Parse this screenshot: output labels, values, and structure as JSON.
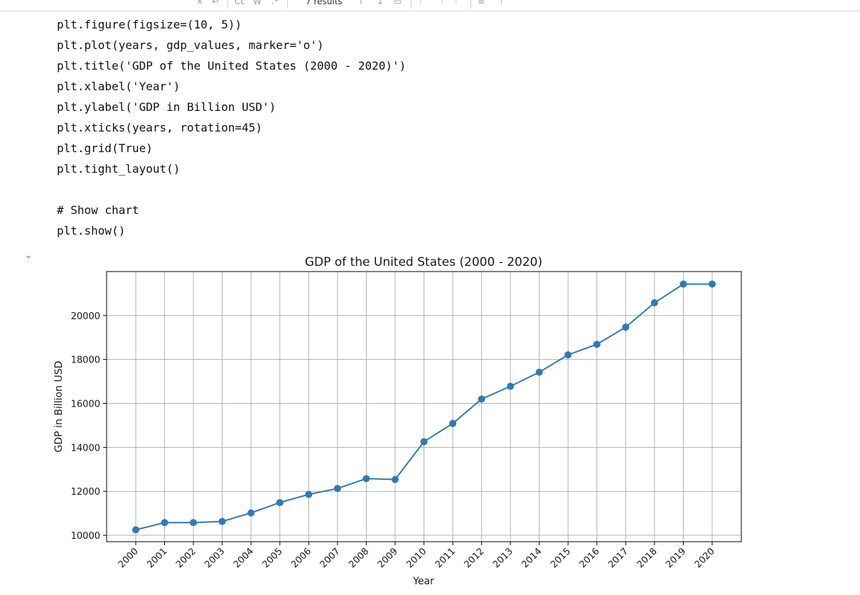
{
  "findbar": {
    "results_text": "7 results",
    "case_label": "Cc",
    "word_label": "W",
    "regex_label": ".*"
  },
  "code_lines": [
    "plt.figure(figsize=(10, 5))",
    "plt.plot(years, gdp_values, marker='o')",
    "plt.title('GDP of the United States (2000 - 2020)')",
    "plt.xlabel('Year')",
    "plt.ylabel('GDP in Billion USD')",
    "plt.xticks(years, rotation=45)",
    "plt.grid(True)",
    "plt.tight_layout()",
    "",
    "# Show chart",
    "plt.show()"
  ],
  "colors": {
    "line": "#2e7ab8",
    "grid": "#b0b0b0"
  },
  "chart_data": {
    "type": "line",
    "title": "GDP of the United States (2000 - 2020)",
    "xlabel": "Year",
    "ylabel": "GDP in Billion USD",
    "x": [
      "2000",
      "2001",
      "2002",
      "2003",
      "2004",
      "2005",
      "2006",
      "2007",
      "2008",
      "2009",
      "2010",
      "2011",
      "2012",
      "2013",
      "2014",
      "2015",
      "2016",
      "2017",
      "2018",
      "2019",
      "2020"
    ],
    "values": [
      10250,
      10580,
      10580,
      10630,
      11020,
      11490,
      11860,
      12130,
      12580,
      12540,
      14260,
      15090,
      16200,
      16780,
      17420,
      18210,
      18690,
      19470,
      20580,
      21430,
      21430
    ],
    "yticks": [
      "10000",
      "12000",
      "14000",
      "16000",
      "18000",
      "20000"
    ],
    "ylim": [
      9710,
      22000
    ],
    "grid": true,
    "marker": "o"
  }
}
